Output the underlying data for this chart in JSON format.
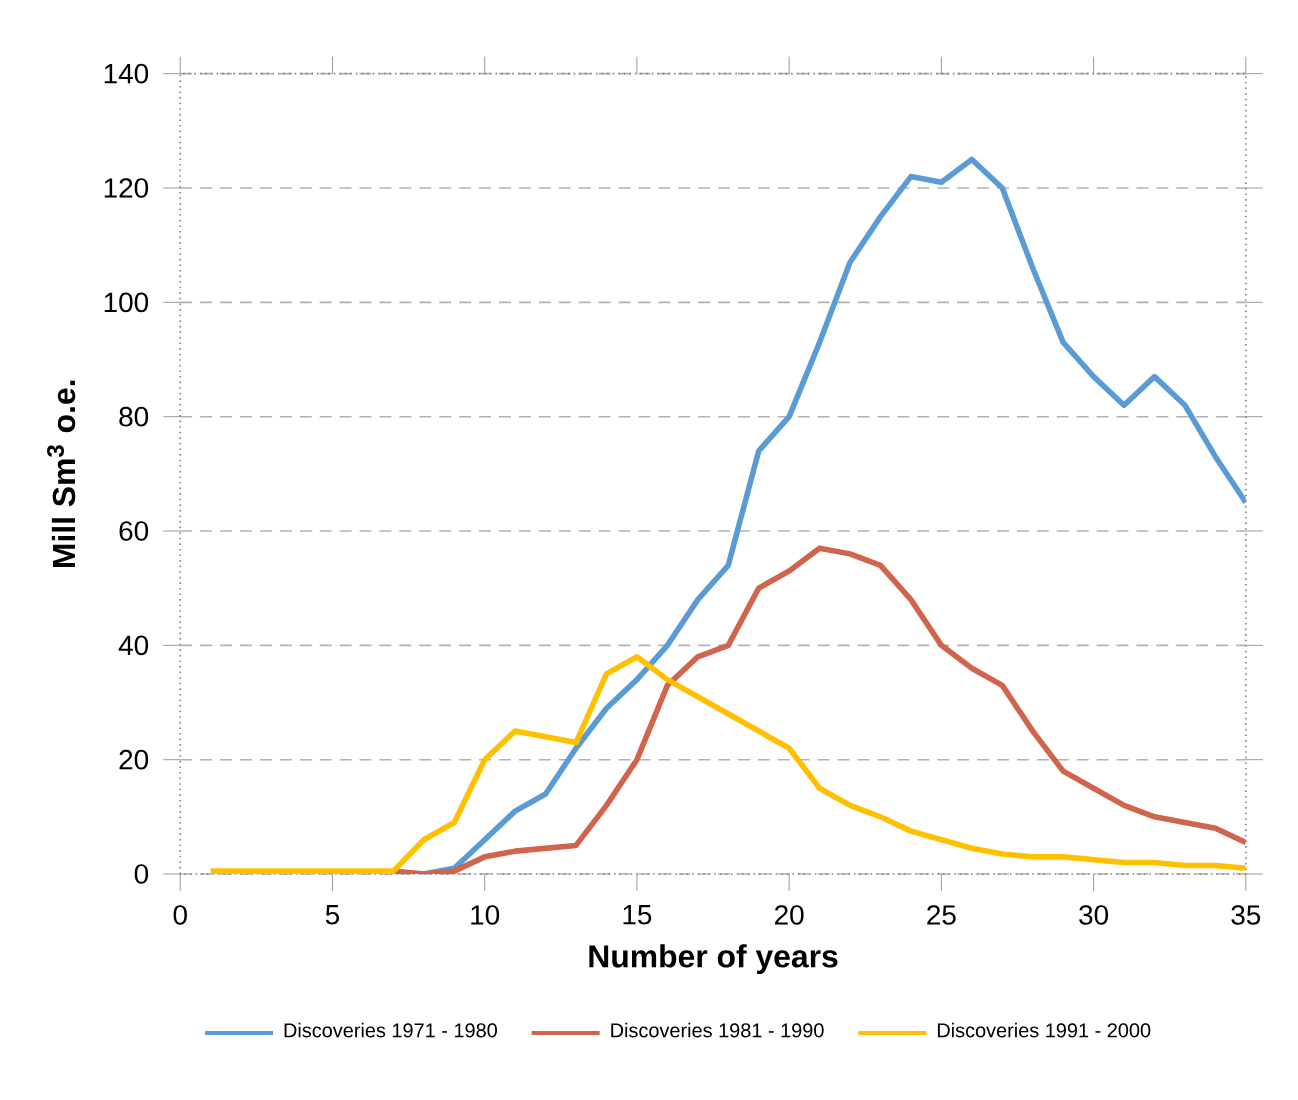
{
  "chart_data": {
    "type": "line",
    "xlabel": "Number of years",
    "ylabel": "Mill Sm$^{3}$ o.e.",
    "xlim": [
      0,
      35
    ],
    "ylim": [
      0,
      140
    ],
    "xticks": [
      0,
      5,
      10,
      15,
      20,
      25,
      30,
      35
    ],
    "yticks": [
      0,
      20,
      40,
      60,
      80,
      100,
      120,
      140
    ],
    "grid": "y",
    "legend": "bottom",
    "marker": "none",
    "line_style": "solid",
    "series": [
      {
        "name": "Discoveries 1971 - 1980",
        "color": "#5b9bd5",
        "x": [
          8,
          9,
          10,
          11,
          12,
          13,
          14,
          15,
          16,
          17,
          18,
          19,
          20,
          21,
          22,
          23,
          24,
          25,
          26,
          27,
          28,
          29,
          30,
          31,
          32,
          33,
          34,
          35
        ],
        "values": [
          0,
          1,
          6,
          11,
          14,
          22,
          29,
          34,
          40,
          48,
          54,
          74,
          80,
          93,
          107,
          115,
          122,
          121,
          125,
          120,
          106,
          93,
          87,
          82,
          87,
          82,
          73,
          65
        ]
      },
      {
        "name": "Discoveries 1981 - 1990",
        "color": "#d0644c",
        "x": [
          7,
          8,
          9,
          10,
          11,
          12,
          13,
          14,
          15,
          16,
          17,
          18,
          19,
          20,
          21,
          22,
          23,
          24,
          25,
          26,
          27,
          28,
          29,
          30,
          31,
          32,
          33,
          34,
          35
        ],
        "values": [
          0.5,
          0,
          0.5,
          3,
          4,
          4.5,
          5,
          12,
          20,
          33,
          38,
          40,
          50,
          53,
          57,
          56,
          54,
          48,
          40,
          36,
          33,
          25,
          18,
          15,
          12,
          10,
          9,
          8,
          5.5
        ]
      },
      {
        "name": "Discoveries 1991 - 2000",
        "color": "#ffc000",
        "x": [
          1,
          2,
          3,
          4,
          5,
          6,
          7,
          8,
          9,
          10,
          11,
          12,
          13,
          14,
          15,
          16,
          17,
          18,
          19,
          20,
          21,
          22,
          23,
          24,
          25,
          26,
          27,
          28,
          29,
          30,
          31,
          32,
          33,
          34,
          35
        ],
        "values": [
          0.5,
          0.5,
          0.5,
          0.5,
          0.5,
          0.5,
          0.5,
          6,
          9,
          20,
          25,
          24,
          23,
          35,
          38,
          34,
          31,
          28,
          25,
          22,
          15,
          12,
          10,
          7.5,
          6,
          4.5,
          3.5,
          3,
          3,
          2.5,
          2,
          2,
          1.5,
          1.5,
          1
        ]
      }
    ]
  }
}
